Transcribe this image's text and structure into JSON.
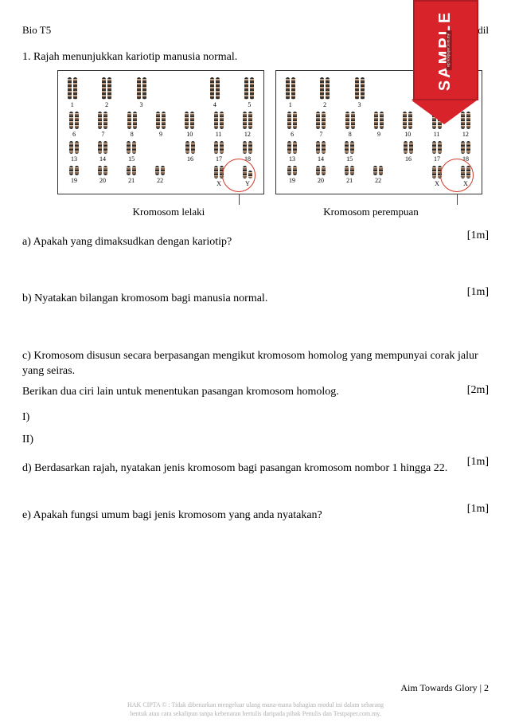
{
  "header": {
    "left": "Bio T5",
    "right": "Aidil"
  },
  "badge": {
    "text": "SAMPLE"
  },
  "q1": {
    "intro": "1. Rajah menunjukkan kariotip manusia normal.",
    "caption_left": "Kromosom lelaki",
    "caption_right": "Kromosom perempuan",
    "a": {
      "text": "a) Apakah yang dimaksudkan dengan kariotip?",
      "marks": "[1m]"
    },
    "b": {
      "text": "b) Nyatakan bilangan kromosom bagi manusia normal.",
      "marks": "[1m]"
    },
    "c": {
      "line1": "c) Kromosom disusun secara berpasangan mengikut kromosom homolog yang mempunyai corak jalur yang seiras.",
      "line2": "Berikan dua ciri lain untuk menentukan pasangan kromosom homolog.",
      "marks": "[2m]",
      "i": "I)",
      "ii": "II)"
    },
    "d": {
      "text": "d) Berdasarkan rajah, nyatakan jenis kromosom bagi pasangan kromosom nombor 1 hingga 22.",
      "marks": "[1m]"
    },
    "e": {
      "text": "e) Apakah fungsi umum bagi jenis kromosom yang anda nyatakan?",
      "marks": "[1m]"
    }
  },
  "karyotype": {
    "row1": [
      "1",
      "2",
      "3",
      "4",
      "5"
    ],
    "row2": [
      "6",
      "7",
      "8",
      "9",
      "10",
      "11",
      "12"
    ],
    "row3": [
      "13",
      "14",
      "15",
      "16",
      "17",
      "18"
    ],
    "row4_left": [
      "19",
      "20",
      "21",
      "22",
      "X",
      "Y"
    ],
    "row4_right": [
      "19",
      "20",
      "21",
      "22",
      "X",
      "X"
    ],
    "size_row1": "tall",
    "size_row2": "med",
    "size_row3": "sm",
    "size_row4": "xs"
  },
  "footer": "Aim Towards Glory | 2",
  "copyright": {
    "l1": "HAK CIPTA © : Tidak dibenarkan mengeluar ulang mana-mana bahagian modul ini dalam sebarang",
    "l2": "bentuk atau cara sekalipun tanpa kebenaran bertulis daripada pihak Penulis dan Testpaper.com.my."
  }
}
